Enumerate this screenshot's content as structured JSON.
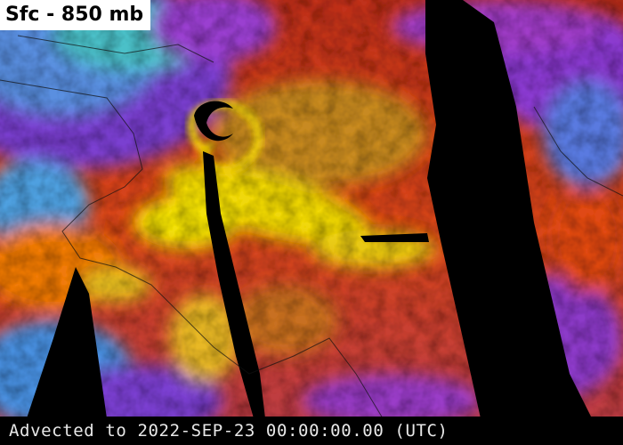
{
  "map": {
    "title": "Sfc - 850 mb",
    "footer": "Advected to 2022-SEP-23 00:00:00.00 (UTC)"
  }
}
